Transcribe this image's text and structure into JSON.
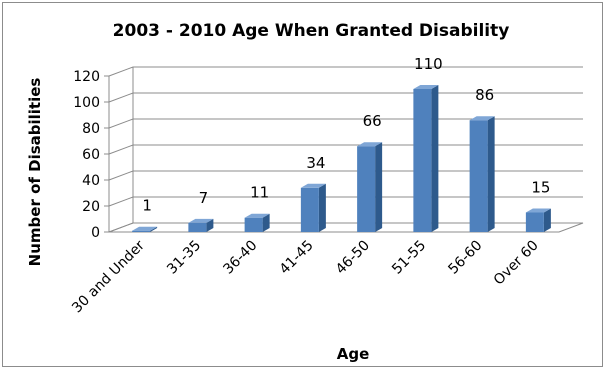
{
  "chart_data": {
    "type": "bar",
    "title": "2003 - 2010 Age When Granted Disability",
    "xlabel": "Age",
    "ylabel": "Number of Disabilities",
    "categories": [
      "30 and Under",
      "31-35",
      "36-40",
      "41-45",
      "46-50",
      "51-55",
      "56-60",
      "Over 60"
    ],
    "values": [
      1,
      7,
      11,
      34,
      66,
      110,
      86,
      15
    ],
    "data_labels": [
      "1",
      "7",
      "11",
      "34",
      "66",
      "110",
      "86",
      "15"
    ],
    "ylim": [
      0,
      120
    ],
    "yticks": [
      "0",
      "20",
      "40",
      "60",
      "80",
      "100",
      "120"
    ],
    "grid": true,
    "legend": "none",
    "style": "3d-column",
    "colors": {
      "bar_front": "#4f81bd",
      "bar_side": "#2e5a8c",
      "bar_top": "#7fa6d6",
      "grid": "#8c8c8c"
    }
  }
}
